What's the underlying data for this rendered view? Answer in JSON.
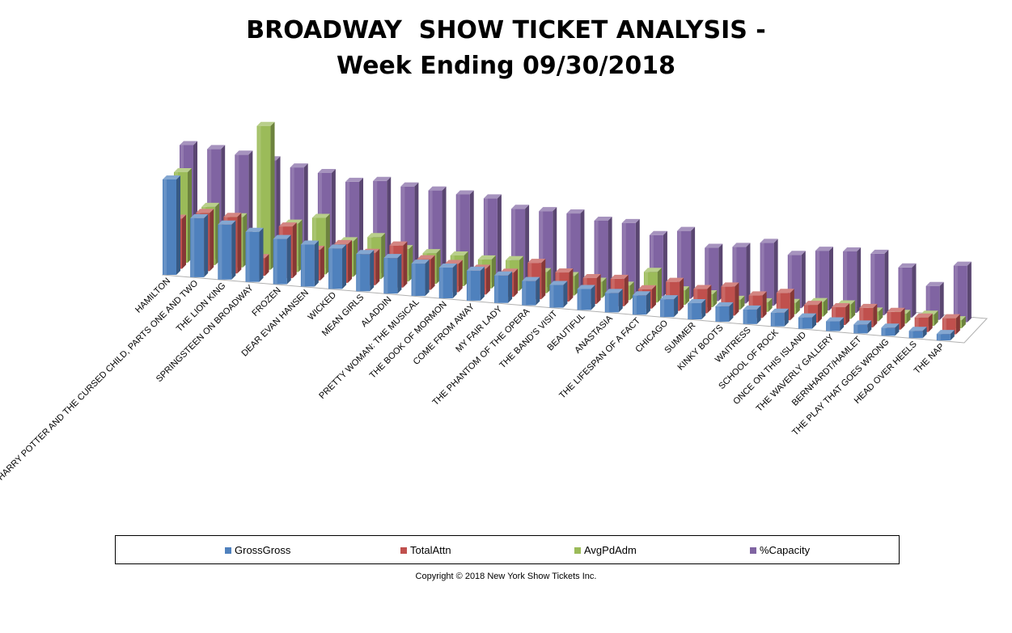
{
  "title_line1": "BROADWAY  SHOW TICKET ANALYSIS -",
  "title_line2": "Week Ending 09/30/2018",
  "copyright": "Copyright © 2018 New York Show Tickets Inc.",
  "colors": {
    "GrossGross": "#4F81BD",
    "TotalAttn": "#C0504D",
    "AvgPdAdm": "#9BBB59",
    "%Capacity": "#8064A2"
  },
  "chart_data": {
    "type": "bar",
    "title": "BROADWAY  SHOW TICKET ANALYSIS - Week Ending 09/30/2018",
    "categories": [
      "HAMILTON",
      "HARRY POTTER AND THE CURSED CHILD, PARTS ONE AND TWO",
      "THE LION KING",
      "SPRINGSTEEN ON BROADWAY",
      "FROZEN",
      "DEAR EVAN HANSEN",
      "WICKED",
      "MEAN GIRLS",
      "ALADDIN",
      "PRETTY WOMAN: THE MUSICAL",
      "THE BOOK OF MORMON",
      "COME FROM AWAY",
      "MY FAIR LADY",
      "THE PHANTOM OF THE OPERA",
      "THE BAND'S VISIT",
      "BEAUTIFUL",
      "ANASTASIA",
      "THE LIFESPAN OF A FACT",
      "CHICAGO",
      "SUMMER",
      "KINKY BOOTS",
      "WAITRESS",
      "SCHOOL OF ROCK",
      "ONCE ON THIS ISLAND",
      "THE WAVERLY GALLERY",
      "BERNHARDT/HAMLET",
      "THE PLAY THAT GOES WRONG",
      "HEAD OVER HEELS",
      "THE NAP"
    ],
    "series": [
      {
        "name": "GrossGross",
        "values": [
          118,
          73,
          68,
          62,
          56,
          52,
          50,
          46,
          44,
          40,
          38,
          37,
          34,
          30,
          28,
          26,
          24,
          24,
          22,
          20,
          19,
          18,
          17,
          14,
          12,
          11,
          10,
          9,
          8
        ]
      },
      {
        "name": "TotalAttn",
        "values": [
          62,
          72,
          70,
          22,
          64,
          38,
          48,
          40,
          52,
          38,
          35,
          32,
          30,
          45,
          36,
          32,
          34,
          24,
          36,
          30,
          36,
          28,
          34,
          22,
          22,
          24,
          22,
          18,
          20
        ]
      },
      {
        "name": "AvgPdAdm",
        "values": [
          112,
          72,
          62,
          178,
          60,
          70,
          44,
          52,
          40,
          38,
          38,
          36,
          38,
          26,
          24,
          20,
          18,
          38,
          18,
          16,
          12,
          12,
          14,
          18,
          18,
          12,
          12,
          14,
          10
        ]
      },
      {
        "name": "%Capacity",
        "values": [
          138,
          136,
          132,
          128,
          122,
          118,
          110,
          114,
          110,
          108,
          106,
          104,
          94,
          94,
          94,
          88,
          88,
          76,
          84,
          66,
          70,
          78,
          66,
          74,
          76,
          76,
          62,
          42,
          70
        ]
      }
    ],
    "legend_position": "bottom",
    "grid": false
  }
}
